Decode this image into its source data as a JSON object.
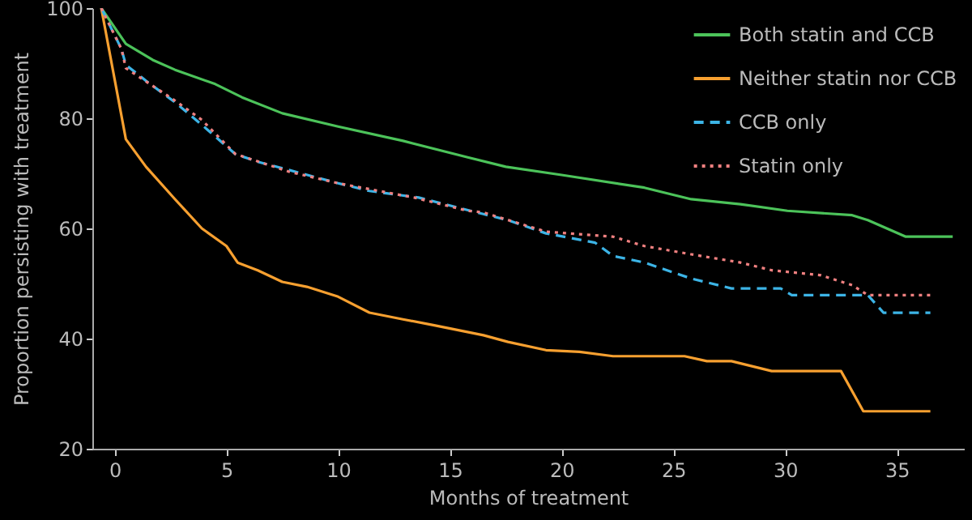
{
  "chart_data": {
    "type": "line",
    "xlabel": "Months of treatment",
    "ylabel": "Proportion persisting with treatment",
    "xlim": [
      -1,
      38
    ],
    "ylim": [
      20,
      100
    ],
    "xticks": [
      0,
      5,
      10,
      15,
      20,
      25,
      30,
      35
    ],
    "yticks": [
      20,
      40,
      60,
      80,
      100
    ],
    "grid": false,
    "legend": "top right",
    "marker": "none",
    "series": [
      {
        "name": "Both statin and CCB",
        "color": "#4cc35a",
        "line_style": "solid",
        "x": [
          -0.6,
          0.5,
          1.7,
          2.7,
          4.5,
          5.7,
          7.5,
          10,
          12.9,
          15.8,
          17.5,
          20,
          23.7,
          25.8,
          28,
          30.1,
          33,
          33.7,
          35.4,
          37.5
        ],
        "values": [
          100,
          93.5,
          90.6,
          88.8,
          86.2,
          83.8,
          80.9,
          78.5,
          75.9,
          72.9,
          71.2,
          69.7,
          67.4,
          65.3,
          64.4,
          63.2,
          62.4,
          61.5,
          58.5,
          58.5
        ]
      },
      {
        "name": "Neither statin nor CCB",
        "color": "#f7a030",
        "line_style": "solid",
        "x": [
          -0.6,
          0.5,
          1.4,
          2.7,
          3.9,
          5,
          5.5,
          6.4,
          7.5,
          8.6,
          10,
          11.4,
          12.9,
          14.3,
          16.5,
          17.6,
          19.3,
          20.8,
          22.3,
          25.5,
          26.5,
          27.6,
          29.4,
          32.5,
          33.5,
          36.5
        ],
        "values": [
          100,
          76.2,
          71.2,
          65.3,
          60,
          56.8,
          53.8,
          52.4,
          50.3,
          49.4,
          47.6,
          44.7,
          43.5,
          42.4,
          40.6,
          39.4,
          37.9,
          37.6,
          36.8,
          36.8,
          35.9,
          35.9,
          34.1,
          34.1,
          26.8,
          26.8
        ]
      },
      {
        "name": "CCB only",
        "color": "#3cb4e6",
        "line_style": "dashed",
        "x": [
          -0.6,
          0.3,
          0.5,
          1.4,
          2.7,
          3.9,
          5.4,
          6.4,
          7.8,
          10,
          11.4,
          13.6,
          16.5,
          17.6,
          19.3,
          21.5,
          22.3,
          23.7,
          25.8,
          27.6,
          29.8,
          30.3,
          33.7,
          34.4,
          36.5
        ],
        "values": [
          100,
          92.6,
          89.7,
          86.8,
          82.9,
          78.8,
          73.5,
          72.1,
          70.6,
          68.2,
          66.8,
          65.6,
          62.6,
          61.5,
          59.1,
          57.4,
          55,
          53.8,
          50.9,
          49.1,
          49.1,
          47.9,
          47.9,
          44.7,
          44.7
        ]
      },
      {
        "name": "Statin only",
        "color": "#f08080",
        "line_style": "dotted",
        "x": [
          -0.6,
          0.3,
          0.5,
          2.7,
          3.9,
          5.4,
          7.8,
          10,
          13.4,
          15.8,
          16.5,
          19.3,
          22.3,
          23.7,
          25.8,
          28,
          29.4,
          31.6,
          33,
          33.7,
          36.5
        ],
        "values": [
          100,
          92.6,
          89.1,
          83.2,
          79.7,
          73.5,
          70.3,
          68.2,
          65.6,
          63.2,
          62.9,
          59.4,
          58.5,
          56.8,
          55.3,
          53.8,
          52.4,
          51.5,
          49.7,
          47.9,
          47.9
        ]
      }
    ]
  }
}
